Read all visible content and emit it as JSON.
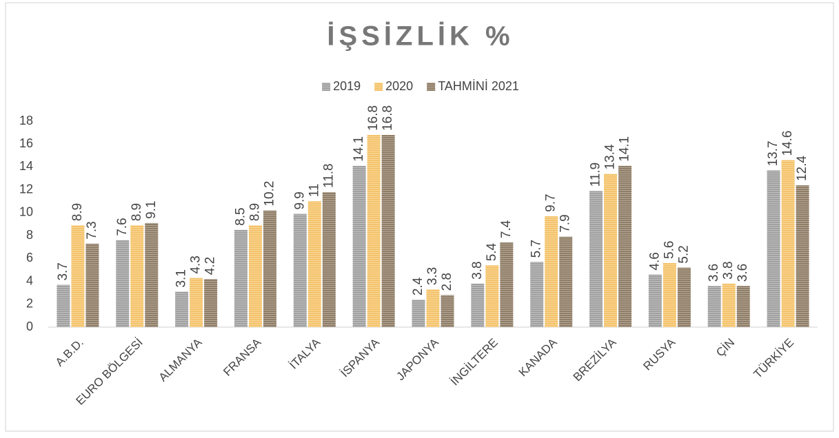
{
  "chart_data": {
    "type": "bar",
    "title": "İŞSİZLİK %",
    "categories": [
      "A.B.D.",
      "EURO BÖLGESİ",
      "ALMANYA",
      "FRANSA",
      "İTALYA",
      "İSPANYA",
      "JAPONYA",
      "İNGİLTERE",
      "KANADA",
      "BREZİLYA",
      "RUSYA",
      "ÇİN",
      "TÜRKİYE"
    ],
    "series": [
      {
        "name": "2019",
        "color": "#a0a0a0",
        "values": [
          3.7,
          7.6,
          3.1,
          8.5,
          9.9,
          14.1,
          2.4,
          3.8,
          5.7,
          11.9,
          4.6,
          3.6,
          13.7
        ]
      },
      {
        "name": "2020",
        "color": "#f4c36a",
        "values": [
          8.9,
          8.9,
          4.3,
          8.9,
          11,
          16.8,
          3.3,
          5.4,
          9.7,
          13.4,
          5.6,
          3.8,
          14.6
        ]
      },
      {
        "name": "TAHMİNİ 2021",
        "color": "#8f7d66",
        "values": [
          7.3,
          9.1,
          4.2,
          10.2,
          11.8,
          16.8,
          2.8,
          7.4,
          7.9,
          14.1,
          5.2,
          3.6,
          12.4
        ]
      }
    ],
    "ylim": [
      0,
      18
    ],
    "yticks": [
      0,
      2,
      4,
      6,
      8,
      10,
      12,
      14,
      16,
      18
    ],
    "grid": false,
    "legend": "top"
  }
}
